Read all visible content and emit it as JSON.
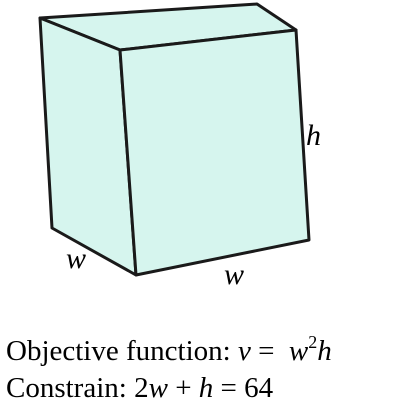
{
  "figure": {
    "face_color": "#d6f5ee",
    "edge_color": "#1a1a1a",
    "labels": {
      "height": "h",
      "width_front": "w",
      "width_side": "w"
    }
  },
  "text": {
    "objective": {
      "prefix": "Objective function:",
      "var_v": "v",
      "equals": "=",
      "var_w": "w",
      "exponent": "2",
      "var_h": "h"
    },
    "constraint": {
      "prefix": "Constrain:",
      "coef": "2",
      "var_w": "w",
      "plus": "+",
      "var_h": "h",
      "equals": "=",
      "value": "64"
    }
  }
}
